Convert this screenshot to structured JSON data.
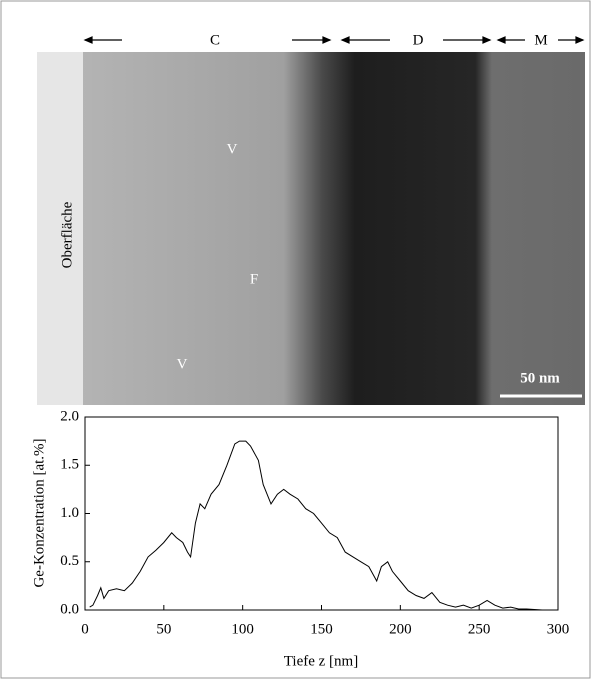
{
  "image": {
    "zones": [
      "C",
      "D",
      "M"
    ],
    "surface": "Oberfläche",
    "markers": [
      "V",
      "F",
      "V"
    ],
    "scale_bar": "50 nm"
  },
  "chart_data": {
    "type": "line",
    "x_label": "Tiefe z [nm]",
    "y_label": "Ge-Konzentration [at.%]",
    "xlim": [
      0,
      300
    ],
    "xticks": [
      0,
      50,
      100,
      150,
      200,
      250,
      300
    ],
    "ylim": [
      0,
      2
    ],
    "yticks": [
      {
        "value": 0,
        "label": "0.0"
      },
      {
        "value": 0.5,
        "label": "0.5"
      },
      {
        "value": 1,
        "label": "1.0"
      },
      {
        "value": 1.5,
        "label": "1.5"
      },
      {
        "value": 2,
        "label": "2.0"
      }
    ],
    "series": [
      {
        "color": "#000000",
        "x": [
          3,
          5,
          8,
          10,
          12,
          15,
          20,
          25,
          30,
          35,
          40,
          45,
          50,
          55,
          58,
          62,
          65,
          67,
          70,
          73,
          76,
          80,
          85,
          90,
          95,
          98,
          102,
          105,
          110,
          113,
          118,
          122,
          126,
          130,
          135,
          140,
          145,
          150,
          155,
          160,
          165,
          170,
          175,
          180,
          185,
          188,
          192,
          195,
          200,
          205,
          210,
          215,
          220,
          225,
          230,
          235,
          240,
          245,
          250,
          255,
          260,
          265,
          270,
          275,
          280,
          290
        ],
        "values": [
          0.03,
          0.05,
          0.15,
          0.23,
          0.12,
          0.2,
          0.22,
          0.2,
          0.28,
          0.4,
          0.55,
          0.62,
          0.7,
          0.8,
          0.75,
          0.7,
          0.6,
          0.55,
          0.9,
          1.1,
          1.05,
          1.2,
          1.3,
          1.5,
          1.72,
          1.75,
          1.75,
          1.7,
          1.55,
          1.3,
          1.1,
          1.2,
          1.25,
          1.2,
          1.15,
          1.05,
          1.0,
          0.9,
          0.8,
          0.75,
          0.6,
          0.55,
          0.5,
          0.45,
          0.3,
          0.45,
          0.5,
          0.4,
          0.3,
          0.2,
          0.15,
          0.12,
          0.18,
          0.08,
          0.05,
          0.03,
          0.05,
          0.02,
          0.05,
          0.1,
          0.05,
          0.02,
          0.03,
          0.01,
          0.01,
          0.0
        ]
      }
    ]
  }
}
